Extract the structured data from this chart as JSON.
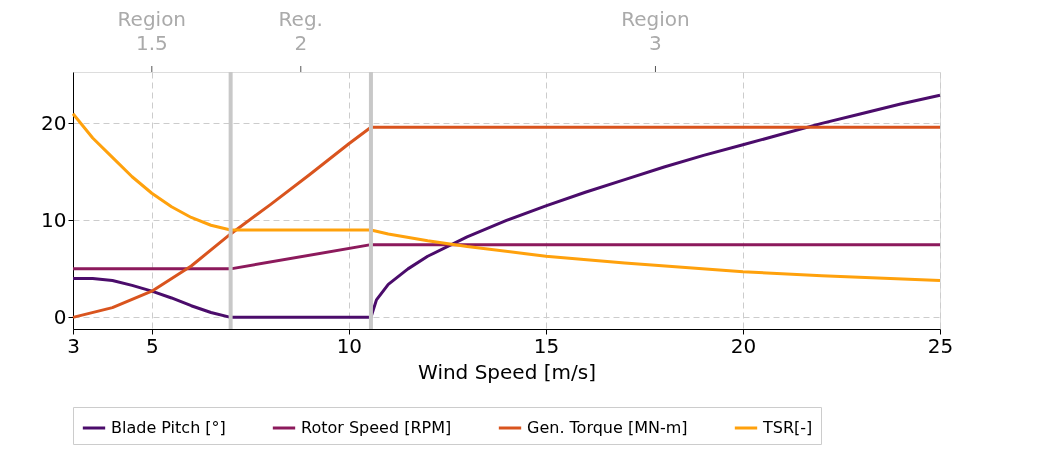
{
  "chart_data": {
    "type": "line",
    "xlabel": "Wind Speed [m/s]",
    "xlim": [
      3,
      25
    ],
    "xticks": [
      3,
      5,
      10,
      15,
      20,
      25
    ],
    "ylim": [
      -1.2,
      25.3
    ],
    "yticks": [
      0,
      10,
      20
    ],
    "annotations": [
      "Region 1.5",
      "Reg. 2",
      "Region 3"
    ],
    "grid": true,
    "legend": "bottom",
    "line_style": "solid",
    "marker": "none",
    "ref_lines": [
      {
        "axis": "x",
        "value": 7,
        "color": "#c8c8c8"
      },
      {
        "axis": "x",
        "value": 10.56,
        "color": "#c8c8c8"
      }
    ],
    "series": [
      {
        "name": "Blade Pitch [°]",
        "color": "#4b0c6b",
        "x": [
          3,
          3.5,
          4,
          4.5,
          5,
          5.5,
          6,
          6.5,
          7,
          10.56,
          10.7,
          11,
          11.5,
          12,
          13,
          14,
          15,
          16,
          17,
          18,
          19,
          20,
          21,
          22,
          23,
          24,
          25
        ],
        "values": [
          4,
          4,
          3.8,
          3.3,
          2.7,
          2,
          1.2,
          0.5,
          0,
          0,
          1.8,
          3.4,
          5,
          6.3,
          8.3,
          10,
          11.5,
          12.9,
          14.2,
          15.5,
          16.7,
          17.8,
          18.9,
          20,
          21,
          22,
          22.9
        ]
      },
      {
        "name": "Rotor Speed [RPM]",
        "color": "#8c1a5c",
        "x": [
          3,
          7,
          10.56,
          25
        ],
        "values": [
          5,
          5,
          7.5,
          7.5
        ]
      },
      {
        "name": "Gen. Torque [MN-m]",
        "color": "#d9541e",
        "x": [
          3,
          4,
          5,
          6,
          7,
          8,
          9,
          10,
          10.56,
          25
        ],
        "values": [
          0,
          1.0,
          2.7,
          5.3,
          8.6,
          11.6,
          14.7,
          17.9,
          19.6,
          19.6
        ]
      },
      {
        "name": "TSR[-]",
        "color": "#ffa10c",
        "x": [
          3,
          3.5,
          4,
          4.5,
          5,
          5.5,
          6,
          6.5,
          7,
          10.56,
          11,
          12,
          13,
          15,
          17,
          20,
          22,
          25
        ],
        "values": [
          21,
          18.5,
          16.5,
          14.5,
          12.8,
          11.4,
          10.3,
          9.5,
          9,
          9,
          8.6,
          7.9,
          7.3,
          6.3,
          5.6,
          4.7,
          4.3,
          3.8
        ]
      }
    ]
  }
}
